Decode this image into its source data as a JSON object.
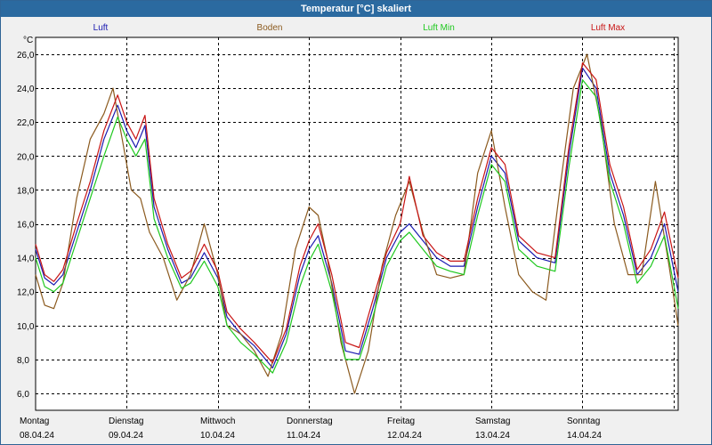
{
  "window": {
    "title": "Temperatur [°C] skaliert"
  },
  "chart_data": {
    "type": "line",
    "title": "Temperatur [°C] skaliert",
    "ylabel": "°C",
    "xlabel": "",
    "ylim": [
      5.0,
      27.0
    ],
    "yticks": [
      "26,0",
      "24,0",
      "22,0",
      "20,0",
      "18,0",
      "16,0",
      "14,0",
      "12,0",
      "10,0",
      "8,0",
      "6,0"
    ],
    "ytick_values": [
      26,
      24,
      22,
      20,
      18,
      16,
      14,
      12,
      10,
      8,
      6
    ],
    "x_days": [
      {
        "day": "Montag",
        "date": "08.04.24"
      },
      {
        "day": "Dienstag",
        "date": "09.04.24"
      },
      {
        "day": "Mittwoch",
        "date": "10.04.24"
      },
      {
        "day": "Donnerstag",
        "date": "11.04.24"
      },
      {
        "day": "Freitag",
        "date": "12.04.24"
      },
      {
        "day": "Samstag",
        "date": "13.04.24"
      },
      {
        "day": "Sonntag",
        "date": "14.04.24"
      }
    ],
    "xlim_days": [
      0,
      7.05
    ],
    "grid": true,
    "legend_placement": "top",
    "series": [
      {
        "name": "Luft",
        "color": "#1a1ab0",
        "x": [
          0,
          0.1,
          0.2,
          0.3,
          0.45,
          0.6,
          0.75,
          0.9,
          1.0,
          1.1,
          1.2,
          1.3,
          1.45,
          1.6,
          1.7,
          1.85,
          2.0,
          2.1,
          2.25,
          2.4,
          2.6,
          2.75,
          2.9,
          3.0,
          3.1,
          3.25,
          3.4,
          3.55,
          3.7,
          3.85,
          4.0,
          4.1,
          4.25,
          4.4,
          4.55,
          4.7,
          4.85,
          5.0,
          5.15,
          5.3,
          5.5,
          5.7,
          5.85,
          6.0,
          6.15,
          6.3,
          6.45,
          6.6,
          6.75,
          6.9,
          7.05
        ],
        "values": [
          14.5,
          12.8,
          12.4,
          13.0,
          15.5,
          18.0,
          21.0,
          23.0,
          21.5,
          20.5,
          21.8,
          17.0,
          14.5,
          12.5,
          12.8,
          14.3,
          12.8,
          10.5,
          9.5,
          8.8,
          7.5,
          9.5,
          13.0,
          14.5,
          15.3,
          12.5,
          8.5,
          8.3,
          11.0,
          14.0,
          15.5,
          16.0,
          15.0,
          14.0,
          13.5,
          13.5,
          17.0,
          20.0,
          19.0,
          15.0,
          14.0,
          13.7,
          20.0,
          25.2,
          24.0,
          19.0,
          16.5,
          13.0,
          14.0,
          16.0,
          12.0
        ]
      },
      {
        "name": "Boden",
        "color": "#8b5a1e",
        "x": [
          0,
          0.1,
          0.2,
          0.3,
          0.45,
          0.6,
          0.75,
          0.85,
          0.95,
          1.05,
          1.15,
          1.25,
          1.4,
          1.55,
          1.7,
          1.85,
          2.0,
          2.1,
          2.25,
          2.4,
          2.55,
          2.7,
          2.85,
          3.0,
          3.1,
          3.2,
          3.35,
          3.5,
          3.65,
          3.8,
          3.95,
          4.1,
          4.25,
          4.4,
          4.55,
          4.7,
          4.85,
          5.0,
          5.15,
          5.3,
          5.45,
          5.6,
          5.75,
          5.9,
          6.05,
          6.2,
          6.35,
          6.5,
          6.65,
          6.8,
          6.95,
          7.05
        ],
        "values": [
          13.0,
          11.2,
          11.0,
          12.5,
          17.5,
          21.0,
          22.5,
          24.0,
          21.0,
          18.0,
          17.5,
          15.5,
          14.0,
          11.5,
          13.0,
          16.0,
          13.0,
          10.0,
          9.5,
          8.5,
          7.0,
          9.5,
          14.5,
          17.0,
          16.5,
          14.0,
          9.0,
          6.0,
          8.5,
          13.5,
          16.5,
          18.5,
          15.5,
          13.0,
          12.8,
          13.0,
          19.0,
          21.5,
          17.0,
          13.0,
          12.0,
          11.5,
          18.0,
          24.0,
          26.0,
          22.0,
          16.0,
          13.0,
          13.0,
          18.5,
          13.5,
          10.0
        ]
      },
      {
        "name": "Luft Min",
        "color": "#1ec81e",
        "x": [
          0,
          0.1,
          0.2,
          0.3,
          0.45,
          0.6,
          0.75,
          0.9,
          1.0,
          1.1,
          1.2,
          1.3,
          1.45,
          1.6,
          1.7,
          1.85,
          2.0,
          2.1,
          2.25,
          2.4,
          2.6,
          2.75,
          2.9,
          3.0,
          3.1,
          3.25,
          3.4,
          3.55,
          3.7,
          3.85,
          4.0,
          4.1,
          4.25,
          4.4,
          4.55,
          4.7,
          4.85,
          5.0,
          5.15,
          5.3,
          5.5,
          5.7,
          5.85,
          6.0,
          6.15,
          6.3,
          6.45,
          6.6,
          6.75,
          6.9,
          7.05
        ],
        "values": [
          14.0,
          12.3,
          12.0,
          12.5,
          15.0,
          17.5,
          20.0,
          22.3,
          21.0,
          20.0,
          21.0,
          16.3,
          14.0,
          12.2,
          12.5,
          13.8,
          12.3,
          10.0,
          9.0,
          8.3,
          7.2,
          9.0,
          12.3,
          13.8,
          14.8,
          12.0,
          8.0,
          8.0,
          10.5,
          13.5,
          15.0,
          15.5,
          14.5,
          13.5,
          13.2,
          13.0,
          16.5,
          19.5,
          18.5,
          14.5,
          13.5,
          13.2,
          19.3,
          24.5,
          23.5,
          18.5,
          16.0,
          12.5,
          13.5,
          15.3,
          11.0
        ]
      },
      {
        "name": "Luft Max",
        "color": "#c81414",
        "x": [
          0,
          0.1,
          0.2,
          0.3,
          0.45,
          0.6,
          0.75,
          0.9,
          1.0,
          1.1,
          1.2,
          1.3,
          1.45,
          1.6,
          1.7,
          1.85,
          2.0,
          2.1,
          2.25,
          2.4,
          2.6,
          2.75,
          2.9,
          3.0,
          3.1,
          3.25,
          3.4,
          3.55,
          3.7,
          3.85,
          4.0,
          4.1,
          4.25,
          4.4,
          4.55,
          4.7,
          4.85,
          5.0,
          5.15,
          5.3,
          5.5,
          5.7,
          5.85,
          6.0,
          6.15,
          6.3,
          6.45,
          6.6,
          6.75,
          6.9,
          7.05
        ],
        "values": [
          14.8,
          13.0,
          12.6,
          13.3,
          16.0,
          18.5,
          21.5,
          23.6,
          22.0,
          21.0,
          22.4,
          17.5,
          14.8,
          12.8,
          13.2,
          14.8,
          13.2,
          10.8,
          9.8,
          9.0,
          7.8,
          9.8,
          13.5,
          15.0,
          16.0,
          13.0,
          9.0,
          8.7,
          11.5,
          14.3,
          16.0,
          18.8,
          15.3,
          14.3,
          13.8,
          13.8,
          17.5,
          20.5,
          19.5,
          15.3,
          14.3,
          14.0,
          20.5,
          25.5,
          24.5,
          19.5,
          17.0,
          13.3,
          14.5,
          16.7,
          12.8
        ]
      }
    ]
  }
}
